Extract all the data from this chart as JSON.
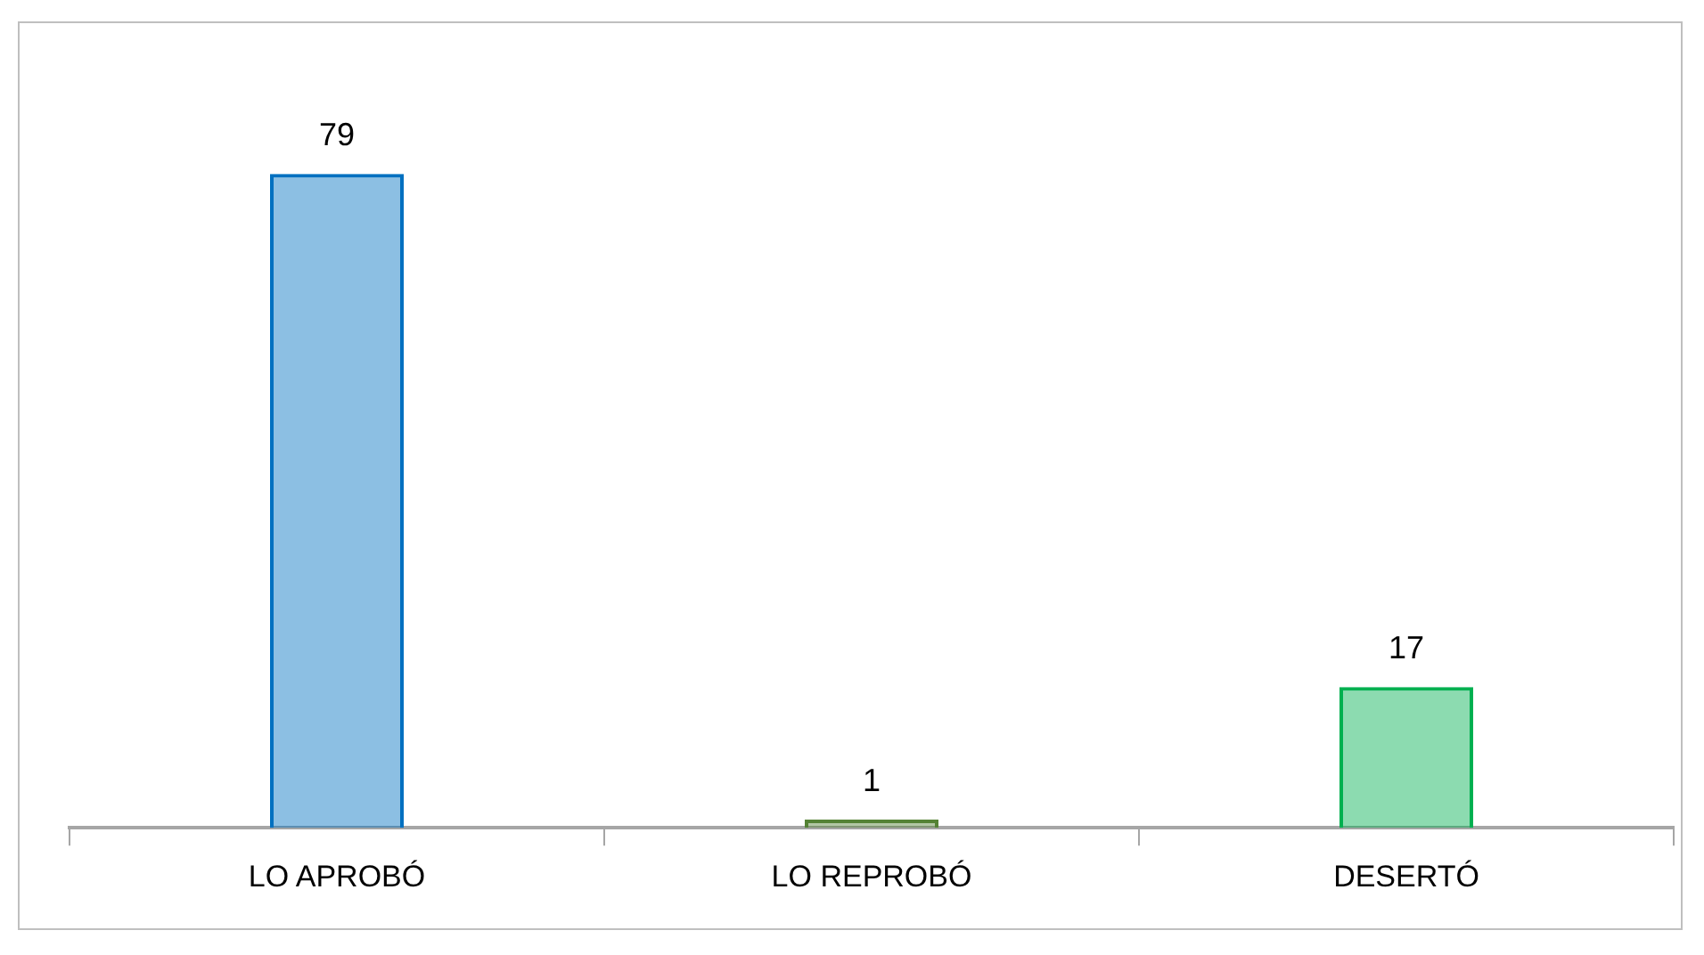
{
  "chart_data": {
    "type": "bar",
    "categories": [
      "LO APROBÓ",
      "LO REPROBÓ",
      "DESERTÓ"
    ],
    "values": [
      79,
      1,
      17
    ],
    "colors": [
      "#0070c0",
      "#548235",
      "#00b050"
    ],
    "data_labels": true,
    "grid": false,
    "legend": false
  }
}
